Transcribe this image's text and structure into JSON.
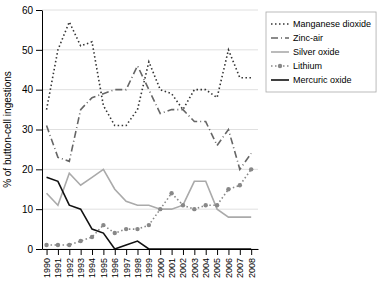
{
  "chart_data": {
    "type": "line",
    "ylabel": "% of button-cell ingestions",
    "x": [
      1990,
      1991,
      1992,
      1993,
      1994,
      1995,
      1996,
      1997,
      1998,
      1999,
      2000,
      2001,
      2002,
      2003,
      2004,
      2005,
      2006,
      2007,
      2008
    ],
    "series": [
      {
        "name": "Manganese dioxide",
        "color": "#333333",
        "line_style": "dotted",
        "marker": "none",
        "values": [
          35,
          50,
          57,
          51,
          52,
          36,
          31,
          31,
          35,
          47,
          40,
          39,
          35,
          40,
          40,
          38,
          50,
          43,
          43
        ]
      },
      {
        "name": "Zinc-air",
        "color": "#666666",
        "line_style": "dashdot",
        "marker": "none",
        "values": [
          31,
          23,
          22,
          35,
          38,
          39,
          40,
          40,
          46,
          40,
          34,
          35,
          35,
          32,
          32,
          26,
          30,
          20,
          24
        ]
      },
      {
        "name": "Silver oxide",
        "color": "#aaaaaa",
        "line_style": "solid",
        "marker": "none",
        "values": [
          14,
          11,
          19,
          16,
          18,
          20,
          15,
          12,
          11,
          11,
          10,
          10,
          11,
          17,
          17,
          10,
          8,
          8,
          8
        ]
      },
      {
        "name": "Lithium",
        "color": "#888888",
        "line_style": "dotted",
        "marker": "circle",
        "values": [
          1,
          1,
          1,
          2,
          3,
          6,
          4,
          5,
          5,
          6,
          10,
          14,
          11,
          10,
          11,
          11,
          15,
          16,
          20
        ]
      },
      {
        "name": "Mercuric oxide",
        "color": "#111111",
        "line_style": "solid",
        "marker": "none",
        "values": [
          18,
          17,
          11,
          10,
          5,
          4,
          0,
          1,
          2,
          0,
          0,
          0,
          0,
          0,
          0,
          0,
          0,
          0,
          0
        ]
      }
    ],
    "xlim": [
      1989.6,
      2008.6
    ],
    "xticks": [
      1990,
      1991,
      1992,
      1993,
      1994,
      1995,
      1996,
      1997,
      1998,
      1999,
      2000,
      2001,
      2002,
      2003,
      2004,
      2005,
      2006,
      2007,
      2008
    ],
    "ylim": [
      0,
      60
    ],
    "yticks": [
      0,
      10,
      20,
      30,
      40,
      50,
      60
    ],
    "grid": true,
    "legend": "right"
  }
}
